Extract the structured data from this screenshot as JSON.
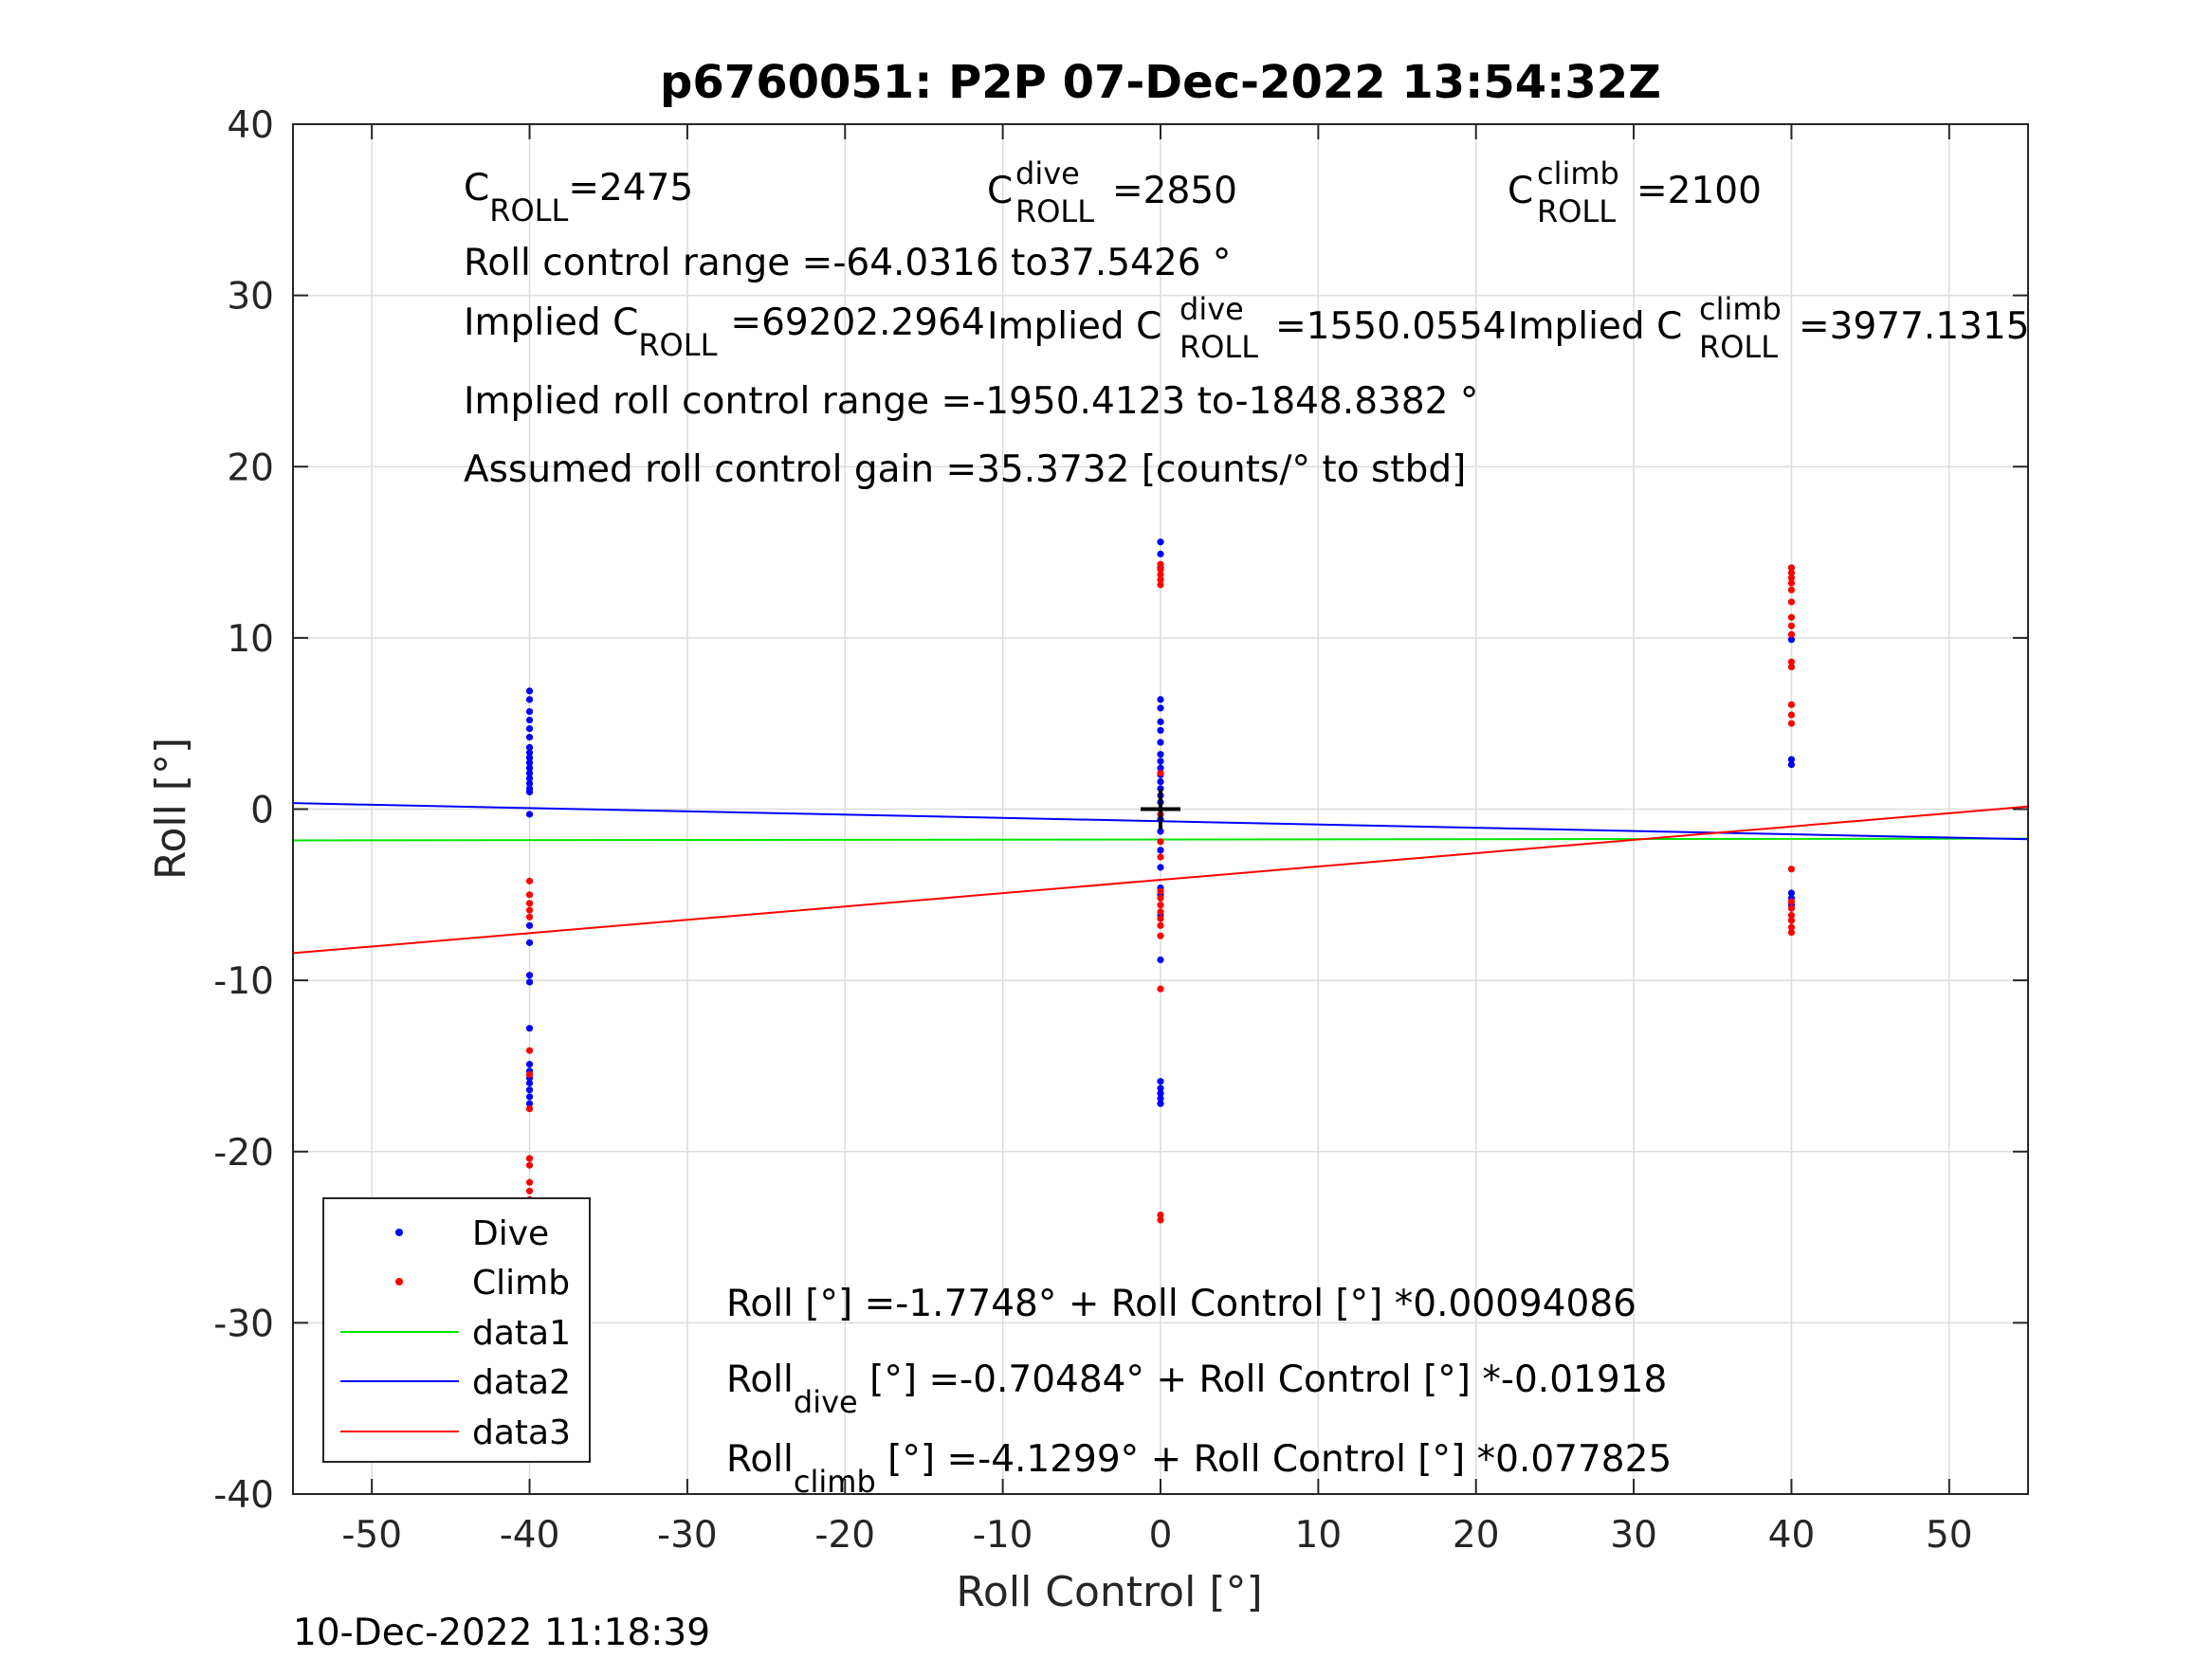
{
  "chart_data": {
    "type": "scatter",
    "title": "p6760051: P2P 07-Dec-2022 13:54:32Z",
    "xlabel": "Roll Control [°]",
    "ylabel": "Roll [°]",
    "xlim": [
      -55,
      55
    ],
    "ylim": [
      -40,
      40
    ],
    "xticks": [
      -50,
      -40,
      -30,
      -20,
      -10,
      0,
      10,
      20,
      30,
      40,
      50
    ],
    "yticks": [
      -40,
      -30,
      -20,
      -10,
      0,
      10,
      20,
      30,
      40
    ],
    "grid": true,
    "legend_position": "bottom-left",
    "timestamp": "10-Dec-2022 11:18:39",
    "center_marker": {
      "x": 0,
      "y": 0
    },
    "annotations": {
      "c_roll_label": "C",
      "c_roll_sub": "ROLL",
      "c_roll_value": "=2475",
      "c_dive_sup": "dive",
      "c_dive_value": "=2850",
      "c_climb_sup": "climb",
      "c_climb_value": "=2100",
      "range_text": "Roll control range =-64.0316 to37.5426 °",
      "implied_prefix": "Implied C",
      "implied_roll_value": "=69202.2964",
      "implied_dive_value": "=1550.0554",
      "implied_climb_value": "=3977.1315",
      "implied_range_text": "Implied roll control range =-1950.4123 to-1848.8382 °",
      "gain_text": "Assumed roll control gain =35.3732 [counts/° to stbd]",
      "fit_all": "Roll [°] =-1.7748° + Roll Control [°] *0.00094086",
      "fit_dive_prefix": "Roll",
      "fit_dive_sub": "dive",
      "fit_dive_rest": " [°] =-0.70484° + Roll Control [°] *-0.01918",
      "fit_climb_prefix": "Roll",
      "fit_climb_sub": "climb",
      "fit_climb_rest": " [°] =-4.1299° + Roll Control [°] *0.077825"
    },
    "series": [
      {
        "name": "Dive",
        "kind": "points",
        "color": "#0000ff",
        "points": [
          [
            -40,
            6.9
          ],
          [
            -40,
            6.4
          ],
          [
            -40,
            5.7
          ],
          [
            -40,
            5.2
          ],
          [
            -40,
            4.7
          ],
          [
            -40,
            4.2
          ],
          [
            -40,
            3.6
          ],
          [
            -40,
            3.3
          ],
          [
            -40,
            3.0
          ],
          [
            -40,
            2.7
          ],
          [
            -40,
            2.4
          ],
          [
            -40,
            2.1
          ],
          [
            -40,
            1.8
          ],
          [
            -40,
            1.5
          ],
          [
            -40,
            1.2
          ],
          [
            -40,
            1.0
          ],
          [
            -40,
            -0.3
          ],
          [
            -40,
            -6.8
          ],
          [
            -40,
            -7.8
          ],
          [
            -40,
            -9.7
          ],
          [
            -40,
            -10.1
          ],
          [
            -40,
            -12.8
          ],
          [
            -40,
            -14.9
          ],
          [
            -40,
            -15.3
          ],
          [
            -40,
            -15.7
          ],
          [
            -40,
            -16.0
          ],
          [
            -40,
            -16.4
          ],
          [
            -40,
            -16.8
          ],
          [
            -40,
            -17.2
          ],
          [
            0,
            15.6
          ],
          [
            0,
            14.9
          ],
          [
            0,
            14.1
          ],
          [
            0,
            6.4
          ],
          [
            0,
            5.9
          ],
          [
            0,
            5.1
          ],
          [
            0,
            4.6
          ],
          [
            0,
            3.9
          ],
          [
            0,
            3.2
          ],
          [
            0,
            2.8
          ],
          [
            0,
            2.4
          ],
          [
            0,
            2.0
          ],
          [
            0,
            1.6
          ],
          [
            0,
            1.2
          ],
          [
            0,
            0.8
          ],
          [
            0,
            0.4
          ],
          [
            0,
            -0.6
          ],
          [
            0,
            -1.3
          ],
          [
            0,
            -2.4
          ],
          [
            0,
            -3.4
          ],
          [
            0,
            -4.6
          ],
          [
            0,
            -5.0
          ],
          [
            0,
            -6.2
          ],
          [
            0,
            -8.8
          ],
          [
            0,
            -15.9
          ],
          [
            0,
            -16.3
          ],
          [
            0,
            -16.6
          ],
          [
            0,
            -16.9
          ],
          [
            0,
            -17.2
          ],
          [
            40,
            9.9
          ],
          [
            40,
            2.9
          ],
          [
            40,
            2.6
          ],
          [
            40,
            -4.9
          ],
          [
            40,
            -5.2
          ],
          [
            40,
            -5.6
          ]
        ]
      },
      {
        "name": "Climb",
        "kind": "points",
        "color": "#ff0000",
        "points": [
          [
            -40,
            -4.2
          ],
          [
            -40,
            -5.0
          ],
          [
            -40,
            -5.5
          ],
          [
            -40,
            -5.9
          ],
          [
            -40,
            -6.3
          ],
          [
            -40,
            -14.1
          ],
          [
            -40,
            -15.5
          ],
          [
            -40,
            -17.5
          ],
          [
            -40,
            -20.4
          ],
          [
            -40,
            -20.8
          ],
          [
            -40,
            -21.8
          ],
          [
            -40,
            -22.3
          ],
          [
            -40,
            -22.8
          ],
          [
            -40,
            -23.2
          ],
          [
            -40,
            -23.6
          ],
          [
            -40,
            -24.0
          ],
          [
            -40,
            -24.4
          ],
          [
            -40,
            -24.8
          ],
          [
            -40,
            -27.3
          ],
          [
            0,
            14.3
          ],
          [
            0,
            14.0
          ],
          [
            0,
            13.7
          ],
          [
            0,
            13.4
          ],
          [
            0,
            13.1
          ],
          [
            0,
            2.1
          ],
          [
            0,
            -0.3
          ],
          [
            0,
            -1.9
          ],
          [
            0,
            -2.8
          ],
          [
            0,
            -4.8
          ],
          [
            0,
            -5.2
          ],
          [
            0,
            -5.6
          ],
          [
            0,
            -6.0
          ],
          [
            0,
            -6.4
          ],
          [
            0,
            -6.8
          ],
          [
            0,
            -7.4
          ],
          [
            0,
            -10.5
          ],
          [
            0,
            -23.7
          ],
          [
            0,
            -24.0
          ],
          [
            40,
            14.1
          ],
          [
            40,
            13.8
          ],
          [
            40,
            13.5
          ],
          [
            40,
            13.2
          ],
          [
            40,
            12.8
          ],
          [
            40,
            12.1
          ],
          [
            40,
            11.2
          ],
          [
            40,
            10.7
          ],
          [
            40,
            10.2
          ],
          [
            40,
            8.6
          ],
          [
            40,
            8.3
          ],
          [
            40,
            6.1
          ],
          [
            40,
            5.5
          ],
          [
            40,
            5.0
          ],
          [
            40,
            -3.5
          ],
          [
            40,
            -5.4
          ],
          [
            40,
            -5.8
          ],
          [
            40,
            -6.2
          ],
          [
            40,
            -6.5
          ],
          [
            40,
            -6.9
          ],
          [
            40,
            -7.2
          ]
        ]
      },
      {
        "name": "data1",
        "kind": "line",
        "color": "#00e600",
        "intercept": -1.7748,
        "slope": 0.00094086
      },
      {
        "name": "data2",
        "kind": "line",
        "color": "#0000ff",
        "intercept": -0.70484,
        "slope": -0.01918
      },
      {
        "name": "data3",
        "kind": "line",
        "color": "#ff0000",
        "intercept": -4.1299,
        "slope": 0.077825
      }
    ]
  }
}
